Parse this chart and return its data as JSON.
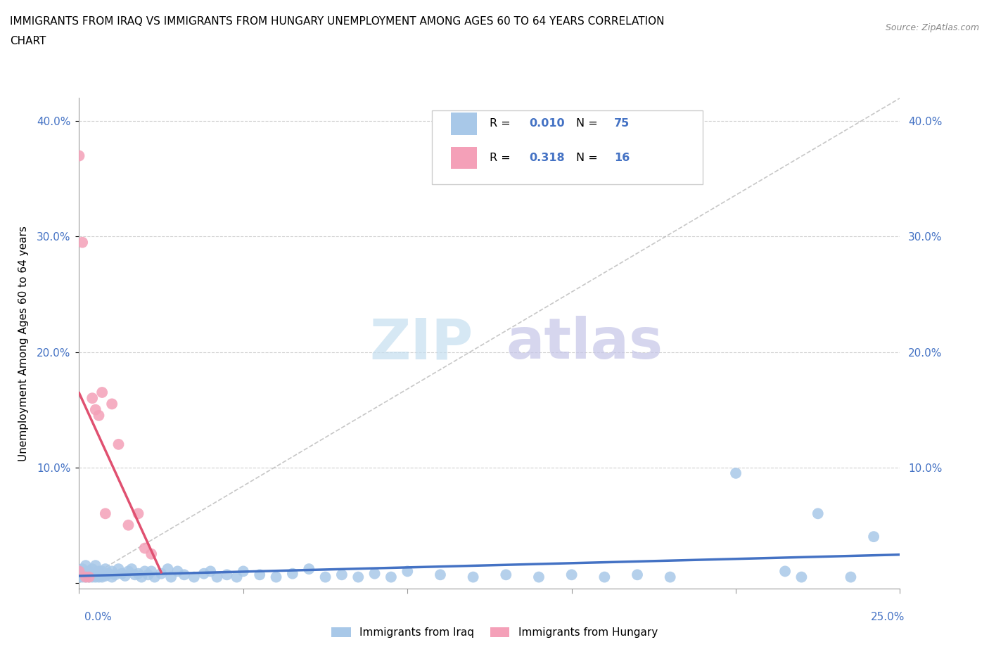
{
  "title_line1": "IMMIGRANTS FROM IRAQ VS IMMIGRANTS FROM HUNGARY UNEMPLOYMENT AMONG AGES 60 TO 64 YEARS CORRELATION",
  "title_line2": "CHART",
  "source": "Source: ZipAtlas.com",
  "ylabel": "Unemployment Among Ages 60 to 64 years",
  "ytick_vals": [
    0.0,
    0.1,
    0.2,
    0.3,
    0.4
  ],
  "ytick_labels": [
    "",
    "10.0%",
    "20.0%",
    "30.0%",
    "40.0%"
  ],
  "xlim": [
    0.0,
    0.25
  ],
  "ylim": [
    -0.005,
    0.42
  ],
  "iraq_color": "#a8c8e8",
  "hungary_color": "#f4a0b8",
  "iraq_line_color": "#4472c4",
  "hungary_line_color": "#e05070",
  "diag_color": "#c0c0c0",
  "iraq_R": "0.010",
  "iraq_N": "75",
  "hungary_R": "0.318",
  "hungary_N": "16",
  "iraq_x": [
    0.0,
    0.0,
    0.0,
    0.001,
    0.001,
    0.001,
    0.002,
    0.002,
    0.002,
    0.003,
    0.003,
    0.003,
    0.004,
    0.004,
    0.005,
    0.005,
    0.005,
    0.006,
    0.006,
    0.007,
    0.007,
    0.008,
    0.008,
    0.009,
    0.01,
    0.01,
    0.011,
    0.012,
    0.013,
    0.014,
    0.015,
    0.016,
    0.017,
    0.018,
    0.019,
    0.02,
    0.021,
    0.022,
    0.023,
    0.025,
    0.027,
    0.028,
    0.03,
    0.032,
    0.035,
    0.038,
    0.04,
    0.042,
    0.045,
    0.048,
    0.05,
    0.055,
    0.06,
    0.065,
    0.07,
    0.075,
    0.08,
    0.085,
    0.09,
    0.095,
    0.1,
    0.11,
    0.12,
    0.13,
    0.14,
    0.15,
    0.16,
    0.17,
    0.18,
    0.2,
    0.215,
    0.22,
    0.225,
    0.235,
    0.242
  ],
  "iraq_y": [
    0.01,
    0.008,
    0.005,
    0.012,
    0.007,
    0.005,
    0.015,
    0.008,
    0.005,
    0.01,
    0.007,
    0.005,
    0.012,
    0.005,
    0.015,
    0.008,
    0.005,
    0.01,
    0.005,
    0.01,
    0.005,
    0.012,
    0.006,
    0.008,
    0.01,
    0.005,
    0.007,
    0.012,
    0.008,
    0.006,
    0.01,
    0.012,
    0.007,
    0.008,
    0.005,
    0.01,
    0.007,
    0.01,
    0.005,
    0.008,
    0.012,
    0.005,
    0.01,
    0.007,
    0.005,
    0.008,
    0.01,
    0.005,
    0.007,
    0.005,
    0.01,
    0.007,
    0.005,
    0.008,
    0.012,
    0.005,
    0.007,
    0.005,
    0.008,
    0.005,
    0.01,
    0.007,
    0.005,
    0.007,
    0.005,
    0.007,
    0.005,
    0.007,
    0.005,
    0.095,
    0.01,
    0.005,
    0.06,
    0.005,
    0.04
  ],
  "hungary_x": [
    0.0,
    0.0,
    0.001,
    0.002,
    0.003,
    0.004,
    0.005,
    0.006,
    0.007,
    0.008,
    0.01,
    0.012,
    0.015,
    0.018,
    0.02,
    0.022
  ],
  "hungary_y": [
    0.37,
    0.01,
    0.295,
    0.005,
    0.005,
    0.16,
    0.15,
    0.145,
    0.165,
    0.06,
    0.155,
    0.12,
    0.05,
    0.06,
    0.03,
    0.025
  ]
}
